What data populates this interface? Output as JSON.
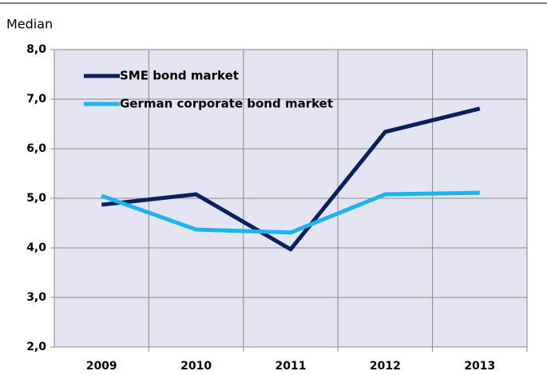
{
  "chart_data": {
    "type": "line",
    "title": "Median",
    "categories": [
      "2009",
      "2010",
      "2011",
      "2012",
      "2013"
    ],
    "series": [
      {
        "name": "SME bond market",
        "color": "#0b1f5e",
        "values": [
          4.87,
          5.08,
          3.97,
          6.34,
          6.81
        ]
      },
      {
        "name": "German corporate bond market",
        "color": "#1bb4ee",
        "values": [
          5.05,
          4.37,
          4.31,
          5.08,
          5.11
        ]
      }
    ],
    "ylim": [
      2,
      8
    ],
    "yticks": [
      {
        "value": 2,
        "label": "2,0"
      },
      {
        "value": 3,
        "label": "3,0"
      },
      {
        "value": 4,
        "label": "4,0"
      },
      {
        "value": 5,
        "label": "5,0"
      },
      {
        "value": 6,
        "label": "6,0"
      },
      {
        "value": 7,
        "label": "7,0"
      },
      {
        "value": 8,
        "label": "8,0"
      }
    ],
    "grid": true,
    "legend": "upper-left"
  }
}
